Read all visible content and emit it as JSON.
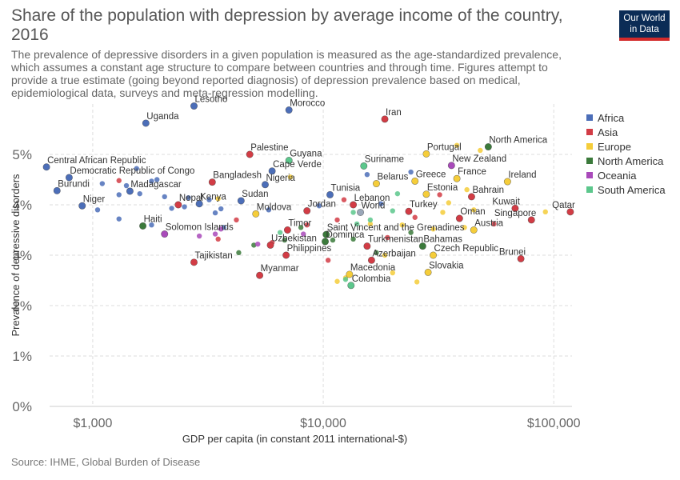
{
  "header": {
    "title": "Share of the population with depression by average income of the country, 2016",
    "subtitle": "The prevalence of depressive disorders in a given population is measured as the age-standardized prevalence, which assumes a constant age structure to compare between countries and through time. Figures attempt to provide a true estimate (going beyond reported diagnosis) of depression prevalence based on medical, epidemiological data, surveys and meta-regression modelling.",
    "logo_line1": "Our World",
    "logo_line2": "in Data"
  },
  "footer": {
    "source": "Source: IHME, Global Burden of Disease"
  },
  "colors": {
    "Africa": "#4c6eb8",
    "Asia": "#d23c45",
    "Europe": "#f5cd3a",
    "North America": "#3b7a3b",
    "Oceania": "#a94aba",
    "South America": "#5cc78c"
  },
  "chart_data": {
    "type": "scatter",
    "xlabel": "GDP per capita (in constant 2011 international-$)",
    "ylabel": "Prevalence of depressive disorders",
    "xscale": "log",
    "xlim": [
      650,
      120000
    ],
    "ylim": [
      0,
      6
    ],
    "xticks": [
      1000,
      10000,
      100000
    ],
    "xtick_labels": [
      "$1,000",
      "$10,000",
      "$100,000"
    ],
    "yticks": [
      0,
      1,
      2,
      3,
      4,
      5
    ],
    "ytick_labels": [
      "0%",
      "1%",
      "2%",
      "3%",
      "4%",
      "5%"
    ],
    "grid": true,
    "legend_position": "right",
    "legend": [
      "Africa",
      "Asia",
      "Europe",
      "North America",
      "Oceania",
      "South America"
    ],
    "labeled_points": [
      {
        "label": "Lesotho",
        "x": 2750,
        "y": 5.96,
        "region": "Africa"
      },
      {
        "label": "Morocco",
        "x": 7100,
        "y": 5.88,
        "region": "Africa"
      },
      {
        "label": "Iran",
        "x": 18500,
        "y": 5.7,
        "region": "Asia"
      },
      {
        "label": "Uganda",
        "x": 1700,
        "y": 5.62,
        "region": "Africa"
      },
      {
        "label": "Portugal",
        "x": 28000,
        "y": 5.01,
        "region": "Europe"
      },
      {
        "label": "North America",
        "x": 52000,
        "y": 5.15,
        "region": "North America"
      },
      {
        "label": "New Zealand",
        "x": 36000,
        "y": 4.78,
        "region": "Oceania"
      },
      {
        "label": "Central African Republic",
        "x": 630,
        "y": 4.75,
        "region": "Africa"
      },
      {
        "label": "Palestine",
        "x": 4800,
        "y": 5.0,
        "region": "Asia"
      },
      {
        "label": "Guyana",
        "x": 7100,
        "y": 4.88,
        "region": "South America"
      },
      {
        "label": "Suriname",
        "x": 15000,
        "y": 4.77,
        "region": "South America"
      },
      {
        "label": "Democratic Republic of Congo",
        "x": 790,
        "y": 4.54,
        "region": "Africa"
      },
      {
        "label": "Cape Verde",
        "x": 6000,
        "y": 4.67,
        "region": "Africa"
      },
      {
        "label": "Nigeria",
        "x": 5600,
        "y": 4.4,
        "region": "Africa"
      },
      {
        "label": "Bangladesh",
        "x": 3300,
        "y": 4.45,
        "region": "Asia"
      },
      {
        "label": "France",
        "x": 38000,
        "y": 4.52,
        "region": "Europe"
      },
      {
        "label": "Ireland",
        "x": 63000,
        "y": 4.46,
        "region": "Europe"
      },
      {
        "label": "Greece",
        "x": 25000,
        "y": 4.47,
        "region": "Europe"
      },
      {
        "label": "Belarus",
        "x": 17000,
        "y": 4.42,
        "region": "Europe"
      },
      {
        "label": "Burundi",
        "x": 700,
        "y": 4.28,
        "region": "Africa"
      },
      {
        "label": "Madagascar",
        "x": 1450,
        "y": 4.27,
        "region": "Africa"
      },
      {
        "label": "Estonia",
        "x": 28000,
        "y": 4.21,
        "region": "Europe"
      },
      {
        "label": "Bahrain",
        "x": 44000,
        "y": 4.16,
        "region": "Asia"
      },
      {
        "label": "Tunisia",
        "x": 10700,
        "y": 4.2,
        "region": "Africa"
      },
      {
        "label": "Sudan",
        "x": 4400,
        "y": 4.08,
        "region": "Africa"
      },
      {
        "label": "Niger",
        "x": 900,
        "y": 3.98,
        "region": "Africa"
      },
      {
        "label": "Nepal",
        "x": 2350,
        "y": 4.0,
        "region": "Asia"
      },
      {
        "label": "Kenya",
        "x": 2900,
        "y": 4.02,
        "region": "Africa"
      },
      {
        "label": "Lebanon",
        "x": 13500,
        "y": 4.0,
        "region": "Asia"
      },
      {
        "label": "Jordan",
        "x": 8500,
        "y": 3.88,
        "region": "Asia"
      },
      {
        "label": "Kuwait",
        "x": 68000,
        "y": 3.93,
        "region": "Asia"
      },
      {
        "label": "Qatar",
        "x": 118000,
        "y": 3.86,
        "region": "Asia"
      },
      {
        "label": "Moldova",
        "x": 5100,
        "y": 3.82,
        "region": "Europe"
      },
      {
        "label": "World",
        "x": 14500,
        "y": 3.85,
        "region": "Other"
      },
      {
        "label": "Turkey",
        "x": 23500,
        "y": 3.87,
        "region": "Asia"
      },
      {
        "label": "Oman",
        "x": 39000,
        "y": 3.73,
        "region": "Asia"
      },
      {
        "label": "Singapore",
        "x": 80000,
        "y": 3.7,
        "region": "Asia"
      },
      {
        "label": "Haiti",
        "x": 1650,
        "y": 3.58,
        "region": "North America"
      },
      {
        "label": "Solomon Islands",
        "x": 2050,
        "y": 3.42,
        "region": "Oceania"
      },
      {
        "label": "Austria",
        "x": 45000,
        "y": 3.5,
        "region": "Europe"
      },
      {
        "label": "Timor",
        "x": 7000,
        "y": 3.5,
        "region": "Asia"
      },
      {
        "label": "Saint Vincent and the Grenadines",
        "x": 10300,
        "y": 3.41,
        "region": "North America"
      },
      {
        "label": "Dominica",
        "x": 10200,
        "y": 3.27,
        "region": "North America"
      },
      {
        "label": "Uzbekistan",
        "x": 5900,
        "y": 3.2,
        "region": "Asia"
      },
      {
        "label": "Turkmenistan",
        "x": 15500,
        "y": 3.18,
        "region": "Asia"
      },
      {
        "label": "Bahamas",
        "x": 27000,
        "y": 3.18,
        "region": "North America"
      },
      {
        "label": "Philippines",
        "x": 6900,
        "y": 3.0,
        "region": "Asia"
      },
      {
        "label": "Czech Republic",
        "x": 30000,
        "y": 3.0,
        "region": "Europe"
      },
      {
        "label": "Brunei",
        "x": 72000,
        "y": 2.93,
        "region": "Asia"
      },
      {
        "label": "Tajikistan",
        "x": 2750,
        "y": 2.86,
        "region": "Asia"
      },
      {
        "label": "Azerbaijan",
        "x": 16200,
        "y": 2.9,
        "region": "Asia"
      },
      {
        "label": "Slovakia",
        "x": 28500,
        "y": 2.66,
        "region": "Europe"
      },
      {
        "label": "Myanmar",
        "x": 5300,
        "y": 2.6,
        "region": "Asia"
      },
      {
        "label": "Macedonia",
        "x": 13000,
        "y": 2.62,
        "region": "Europe"
      },
      {
        "label": "Colombia",
        "x": 13200,
        "y": 2.4,
        "region": "South America"
      }
    ],
    "unlabeled_points": [
      {
        "x": 1100,
        "y": 4.42,
        "region": "Africa"
      },
      {
        "x": 1300,
        "y": 4.2,
        "region": "Africa"
      },
      {
        "x": 1400,
        "y": 4.38,
        "region": "Africa"
      },
      {
        "x": 1550,
        "y": 4.72,
        "region": "Africa"
      },
      {
        "x": 1600,
        "y": 4.22,
        "region": "Africa"
      },
      {
        "x": 1800,
        "y": 4.47,
        "region": "Africa"
      },
      {
        "x": 1900,
        "y": 4.5,
        "region": "Africa"
      },
      {
        "x": 2050,
        "y": 4.16,
        "region": "Africa"
      },
      {
        "x": 2200,
        "y": 3.93,
        "region": "Africa"
      },
      {
        "x": 2500,
        "y": 3.96,
        "region": "Africa"
      },
      {
        "x": 2600,
        "y": 4.14,
        "region": "Africa"
      },
      {
        "x": 3200,
        "y": 4.1,
        "region": "Africa"
      },
      {
        "x": 3600,
        "y": 3.92,
        "region": "Africa"
      },
      {
        "x": 3700,
        "y": 3.55,
        "region": "Africa"
      },
      {
        "x": 1050,
        "y": 3.9,
        "region": "Africa"
      },
      {
        "x": 1300,
        "y": 3.72,
        "region": "Africa"
      },
      {
        "x": 1800,
        "y": 3.6,
        "region": "Africa"
      },
      {
        "x": 3400,
        "y": 3.84,
        "region": "Africa"
      },
      {
        "x": 5800,
        "y": 3.9,
        "region": "Africa"
      },
      {
        "x": 9600,
        "y": 3.98,
        "region": "Africa"
      },
      {
        "x": 15500,
        "y": 4.6,
        "region": "Africa"
      },
      {
        "x": 17800,
        "y": 4.02,
        "region": "Africa"
      },
      {
        "x": 24000,
        "y": 4.65,
        "region": "Africa"
      },
      {
        "x": 11500,
        "y": 3.7,
        "region": "Asia"
      },
      {
        "x": 12300,
        "y": 4.1,
        "region": "Asia"
      },
      {
        "x": 8500,
        "y": 3.6,
        "region": "Asia"
      },
      {
        "x": 6000,
        "y": 3.25,
        "region": "Asia"
      },
      {
        "x": 4200,
        "y": 3.7,
        "region": "Asia"
      },
      {
        "x": 3500,
        "y": 3.32,
        "region": "Asia"
      },
      {
        "x": 19000,
        "y": 3.35,
        "region": "Asia"
      },
      {
        "x": 25000,
        "y": 3.75,
        "region": "Asia"
      },
      {
        "x": 32000,
        "y": 4.2,
        "region": "Asia"
      },
      {
        "x": 55000,
        "y": 3.62,
        "region": "Asia"
      },
      {
        "x": 10500,
        "y": 2.9,
        "region": "Asia"
      },
      {
        "x": 1300,
        "y": 4.48,
        "region": "Asia"
      },
      {
        "x": 30000,
        "y": 3.52,
        "region": "Europe"
      },
      {
        "x": 33000,
        "y": 3.85,
        "region": "Europe"
      },
      {
        "x": 35000,
        "y": 4.04,
        "region": "Europe"
      },
      {
        "x": 38000,
        "y": 5.18,
        "region": "Europe"
      },
      {
        "x": 42000,
        "y": 4.3,
        "region": "Europe"
      },
      {
        "x": 45000,
        "y": 3.9,
        "region": "Europe"
      },
      {
        "x": 48000,
        "y": 5.08,
        "region": "Europe"
      },
      {
        "x": 41000,
        "y": 3.55,
        "region": "Europe"
      },
      {
        "x": 20000,
        "y": 2.65,
        "region": "Europe"
      },
      {
        "x": 25500,
        "y": 2.47,
        "region": "Europe"
      },
      {
        "x": 22000,
        "y": 3.6,
        "region": "Europe"
      },
      {
        "x": 11500,
        "y": 2.48,
        "region": "Europe"
      },
      {
        "x": 12500,
        "y": 2.55,
        "region": "Europe"
      },
      {
        "x": 16000,
        "y": 3.62,
        "region": "Europe"
      },
      {
        "x": 18500,
        "y": 3.0,
        "region": "Europe"
      },
      {
        "x": 92000,
        "y": 3.86,
        "region": "Europe"
      },
      {
        "x": 7200,
        "y": 4.55,
        "region": "Europe"
      },
      {
        "x": 3500,
        "y": 4.12,
        "region": "Europe"
      },
      {
        "x": 8000,
        "y": 3.55,
        "region": "North America"
      },
      {
        "x": 11000,
        "y": 3.3,
        "region": "North America"
      },
      {
        "x": 13500,
        "y": 3.32,
        "region": "North America"
      },
      {
        "x": 17000,
        "y": 3.05,
        "region": "North America"
      },
      {
        "x": 24000,
        "y": 3.45,
        "region": "North America"
      },
      {
        "x": 4300,
        "y": 3.05,
        "region": "North America"
      },
      {
        "x": 5000,
        "y": 3.2,
        "region": "North America"
      },
      {
        "x": 6800,
        "y": 3.3,
        "region": "North America"
      },
      {
        "x": 2900,
        "y": 3.38,
        "region": "Oceania"
      },
      {
        "x": 3400,
        "y": 3.42,
        "region": "Oceania"
      },
      {
        "x": 3600,
        "y": 3.52,
        "region": "Oceania"
      },
      {
        "x": 5200,
        "y": 3.22,
        "region": "Oceania"
      },
      {
        "x": 8200,
        "y": 3.42,
        "region": "Oceania"
      },
      {
        "x": 6500,
        "y": 3.45,
        "region": "South America"
      },
      {
        "x": 13500,
        "y": 3.85,
        "region": "South America"
      },
      {
        "x": 14000,
        "y": 3.62,
        "region": "South America"
      },
      {
        "x": 16000,
        "y": 3.7,
        "region": "South America"
      },
      {
        "x": 20000,
        "y": 3.88,
        "region": "South America"
      },
      {
        "x": 21000,
        "y": 4.22,
        "region": "South America"
      },
      {
        "x": 12500,
        "y": 2.52,
        "region": "South America"
      }
    ]
  }
}
